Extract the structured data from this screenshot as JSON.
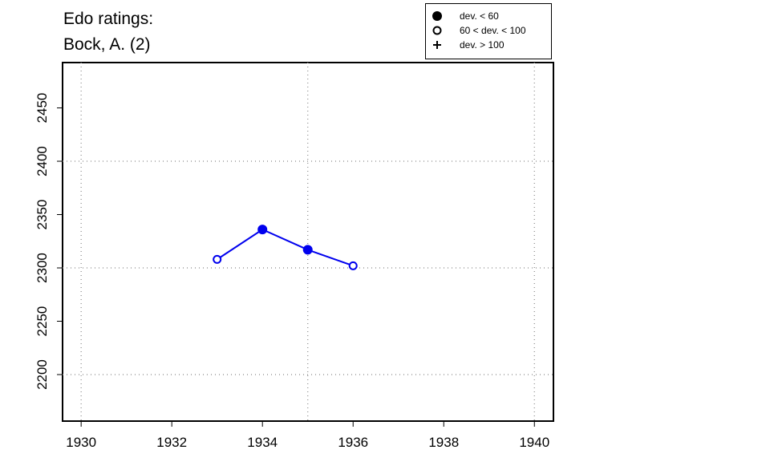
{
  "chart_data": {
    "type": "line",
    "title": "Edo ratings:",
    "subtitle": "Bock, A. (2)",
    "xlim": [
      1929.59,
      1940.42
    ],
    "ylim": [
      2156.4,
      2492.5
    ],
    "xticks": [
      1930,
      1932,
      1934,
      1936,
      1938,
      1940
    ],
    "yticks": [
      2200,
      2250,
      2300,
      2350,
      2400,
      2450
    ],
    "xgrid": [
      1930,
      1935,
      1940
    ],
    "ygrid": [
      2200,
      2300,
      2400
    ],
    "series": [
      {
        "color": "#0000ee",
        "x": [
          1933,
          1934,
          1935,
          1936
        ],
        "values": [
          2308,
          2336,
          2317,
          2302
        ],
        "markers": [
          "open",
          "filled",
          "filled",
          "open"
        ]
      }
    ],
    "legend": [
      {
        "label": "dev. < 60",
        "marker": "filled"
      },
      {
        "label": "60 < dev. < 100",
        "marker": "open"
      },
      {
        "label": "dev. > 100",
        "marker": "plus"
      }
    ]
  }
}
